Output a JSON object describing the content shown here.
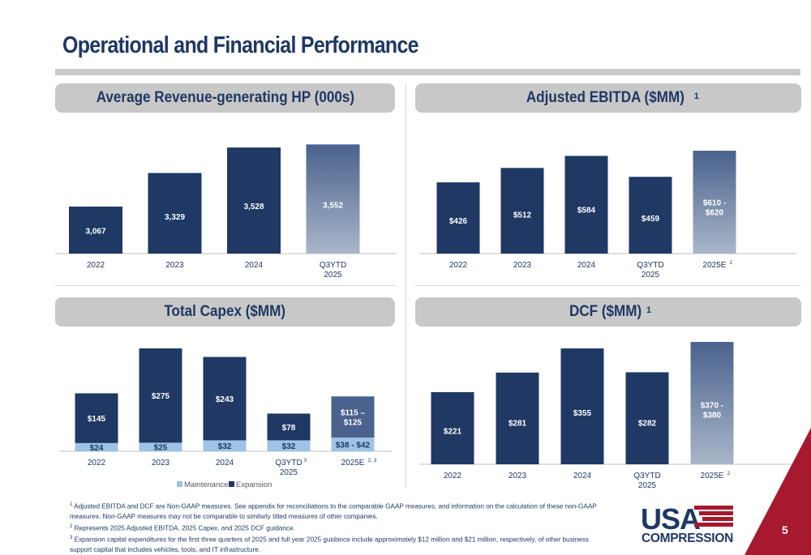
{
  "slide": {
    "title": "Operational and Financial Performance",
    "page_number": "5",
    "colors": {
      "navy": "#1f3864",
      "gradient_top": "#4a628d",
      "gradient_bottom": "#a9b6c9",
      "maintenance": "#9dc3e6",
      "header_bg": "#c8c8c8",
      "accent_red": "#a6192e",
      "capex_guidance_expansion": "#4a628d"
    }
  },
  "panels": [
    {
      "header": "Average Revenue-generating HP (000s)",
      "sup": ""
    },
    {
      "header": "Adjusted EBITDA ($MM)",
      "sup": "1"
    },
    {
      "header": "Total Capex ($MM)",
      "sup": ""
    },
    {
      "header": "DCF ($MM)",
      "sup": "1"
    }
  ],
  "chart_data": [
    {
      "type": "bar",
      "title": "Average Revenue-generating HP (000s)",
      "categories": [
        "2022",
        "2023",
        "2024",
        "Q3YTD\n2025"
      ],
      "category_sups": [
        "",
        "",
        "",
        ""
      ],
      "values": [
        3067,
        3329,
        3528,
        3552
      ],
      "labels": [
        "3,067",
        "3,329",
        "3,528",
        "3,552"
      ],
      "styles": [
        "solid",
        "solid",
        "solid",
        "gradient"
      ],
      "ylim": [
        2700,
        3560
      ],
      "xlabel": "",
      "ylabel": "",
      "grid": false,
      "legend": "none"
    },
    {
      "type": "bar",
      "title": "Adjusted EBITDA ($MM)",
      "categories": [
        "2022",
        "2023",
        "2024",
        "Q3YTD\n2025",
        "2025E"
      ],
      "category_sups": [
        "",
        "",
        "",
        "",
        "2"
      ],
      "values": [
        426,
        512,
        584,
        459,
        615
      ],
      "labels": [
        "$426",
        "$512",
        "$584",
        "$459",
        "$610 -\n$620"
      ],
      "styles": [
        "solid",
        "solid",
        "solid",
        "solid",
        "gradient"
      ],
      "ylim": [
        0,
        620
      ],
      "xlabel": "",
      "ylabel": "",
      "grid": false,
      "legend": "none"
    },
    {
      "type": "bar",
      "stacked": true,
      "title": "Total Capex ($MM)",
      "categories": [
        "2022",
        "2023",
        "2024",
        "Q3YTD\n2025",
        "2025E"
      ],
      "category_sups": [
        "",
        "",
        "",
        "3",
        "2, 3"
      ],
      "series": [
        {
          "name": "Maintenance",
          "values": [
            24,
            25,
            32,
            32,
            40
          ],
          "labels": [
            "$24",
            "$25",
            "$32",
            "$32",
            "$38 - $42"
          ]
        },
        {
          "name": "Expansion",
          "values": [
            145,
            275,
            243,
            78,
            120
          ],
          "labels": [
            "$145",
            "$275",
            "$243",
            "$78",
            "$115 –\n$125"
          ]
        }
      ],
      "ylim": [
        0,
        300
      ],
      "xlabel": "",
      "ylabel": "",
      "grid": false,
      "legend": "bottom-left"
    },
    {
      "type": "bar",
      "title": "DCF ($MM)",
      "categories": [
        "2022",
        "2023",
        "2024",
        "Q3YTD\n2025",
        "2025E"
      ],
      "category_sups": [
        "",
        "",
        "",
        "",
        "2"
      ],
      "values": [
        221,
        281,
        355,
        282,
        375
      ],
      "labels": [
        "$221",
        "$281",
        "$355",
        "$282",
        "$370 -\n$380"
      ],
      "styles": [
        "solid",
        "solid",
        "solid",
        "solid",
        "gradient"
      ],
      "ylim": [
        0,
        380
      ],
      "xlabel": "",
      "ylabel": "",
      "grid": false,
      "legend": "none"
    }
  ],
  "footnotes": [
    {
      "sup": "1",
      "text": "Adjusted EBITDA and DCF are Non-GAAP measures. See appendix for reconciliations to the comparable GAAP measures, and information on the calculation of these non-GAAP measures. Non-GAAP measures may not be comparable to similarly titled measures of other companies."
    },
    {
      "sup": "2",
      "text": "Represents 2025 Adjusted EBITDA, 2025 Capex, and 2025 DCF guidance."
    },
    {
      "sup": "3",
      "text": "Expansion capital expenditures for the first three quarters of 2025 and full year 2025 guidance include approximately $12 million and $21 million, respectively, of other business support capital that includes vehicles, tools, and IT infrastructure."
    }
  ],
  "logo": {
    "line1": "USA",
    "line2": "COMPRESSION"
  }
}
